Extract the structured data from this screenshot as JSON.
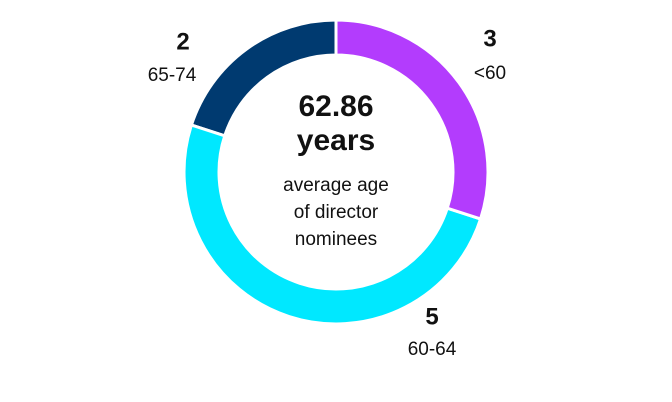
{
  "chart_data": {
    "type": "donut",
    "center_title": [
      "62.86",
      "years"
    ],
    "center_caption": [
      "average age",
      "of director",
      "nominees"
    ],
    "categories": [
      "<60",
      "60-64",
      "65-74"
    ],
    "values": [
      3,
      5,
      2
    ],
    "colors": [
      "#b33cfd",
      "#00e8ff",
      "#003a70"
    ]
  }
}
